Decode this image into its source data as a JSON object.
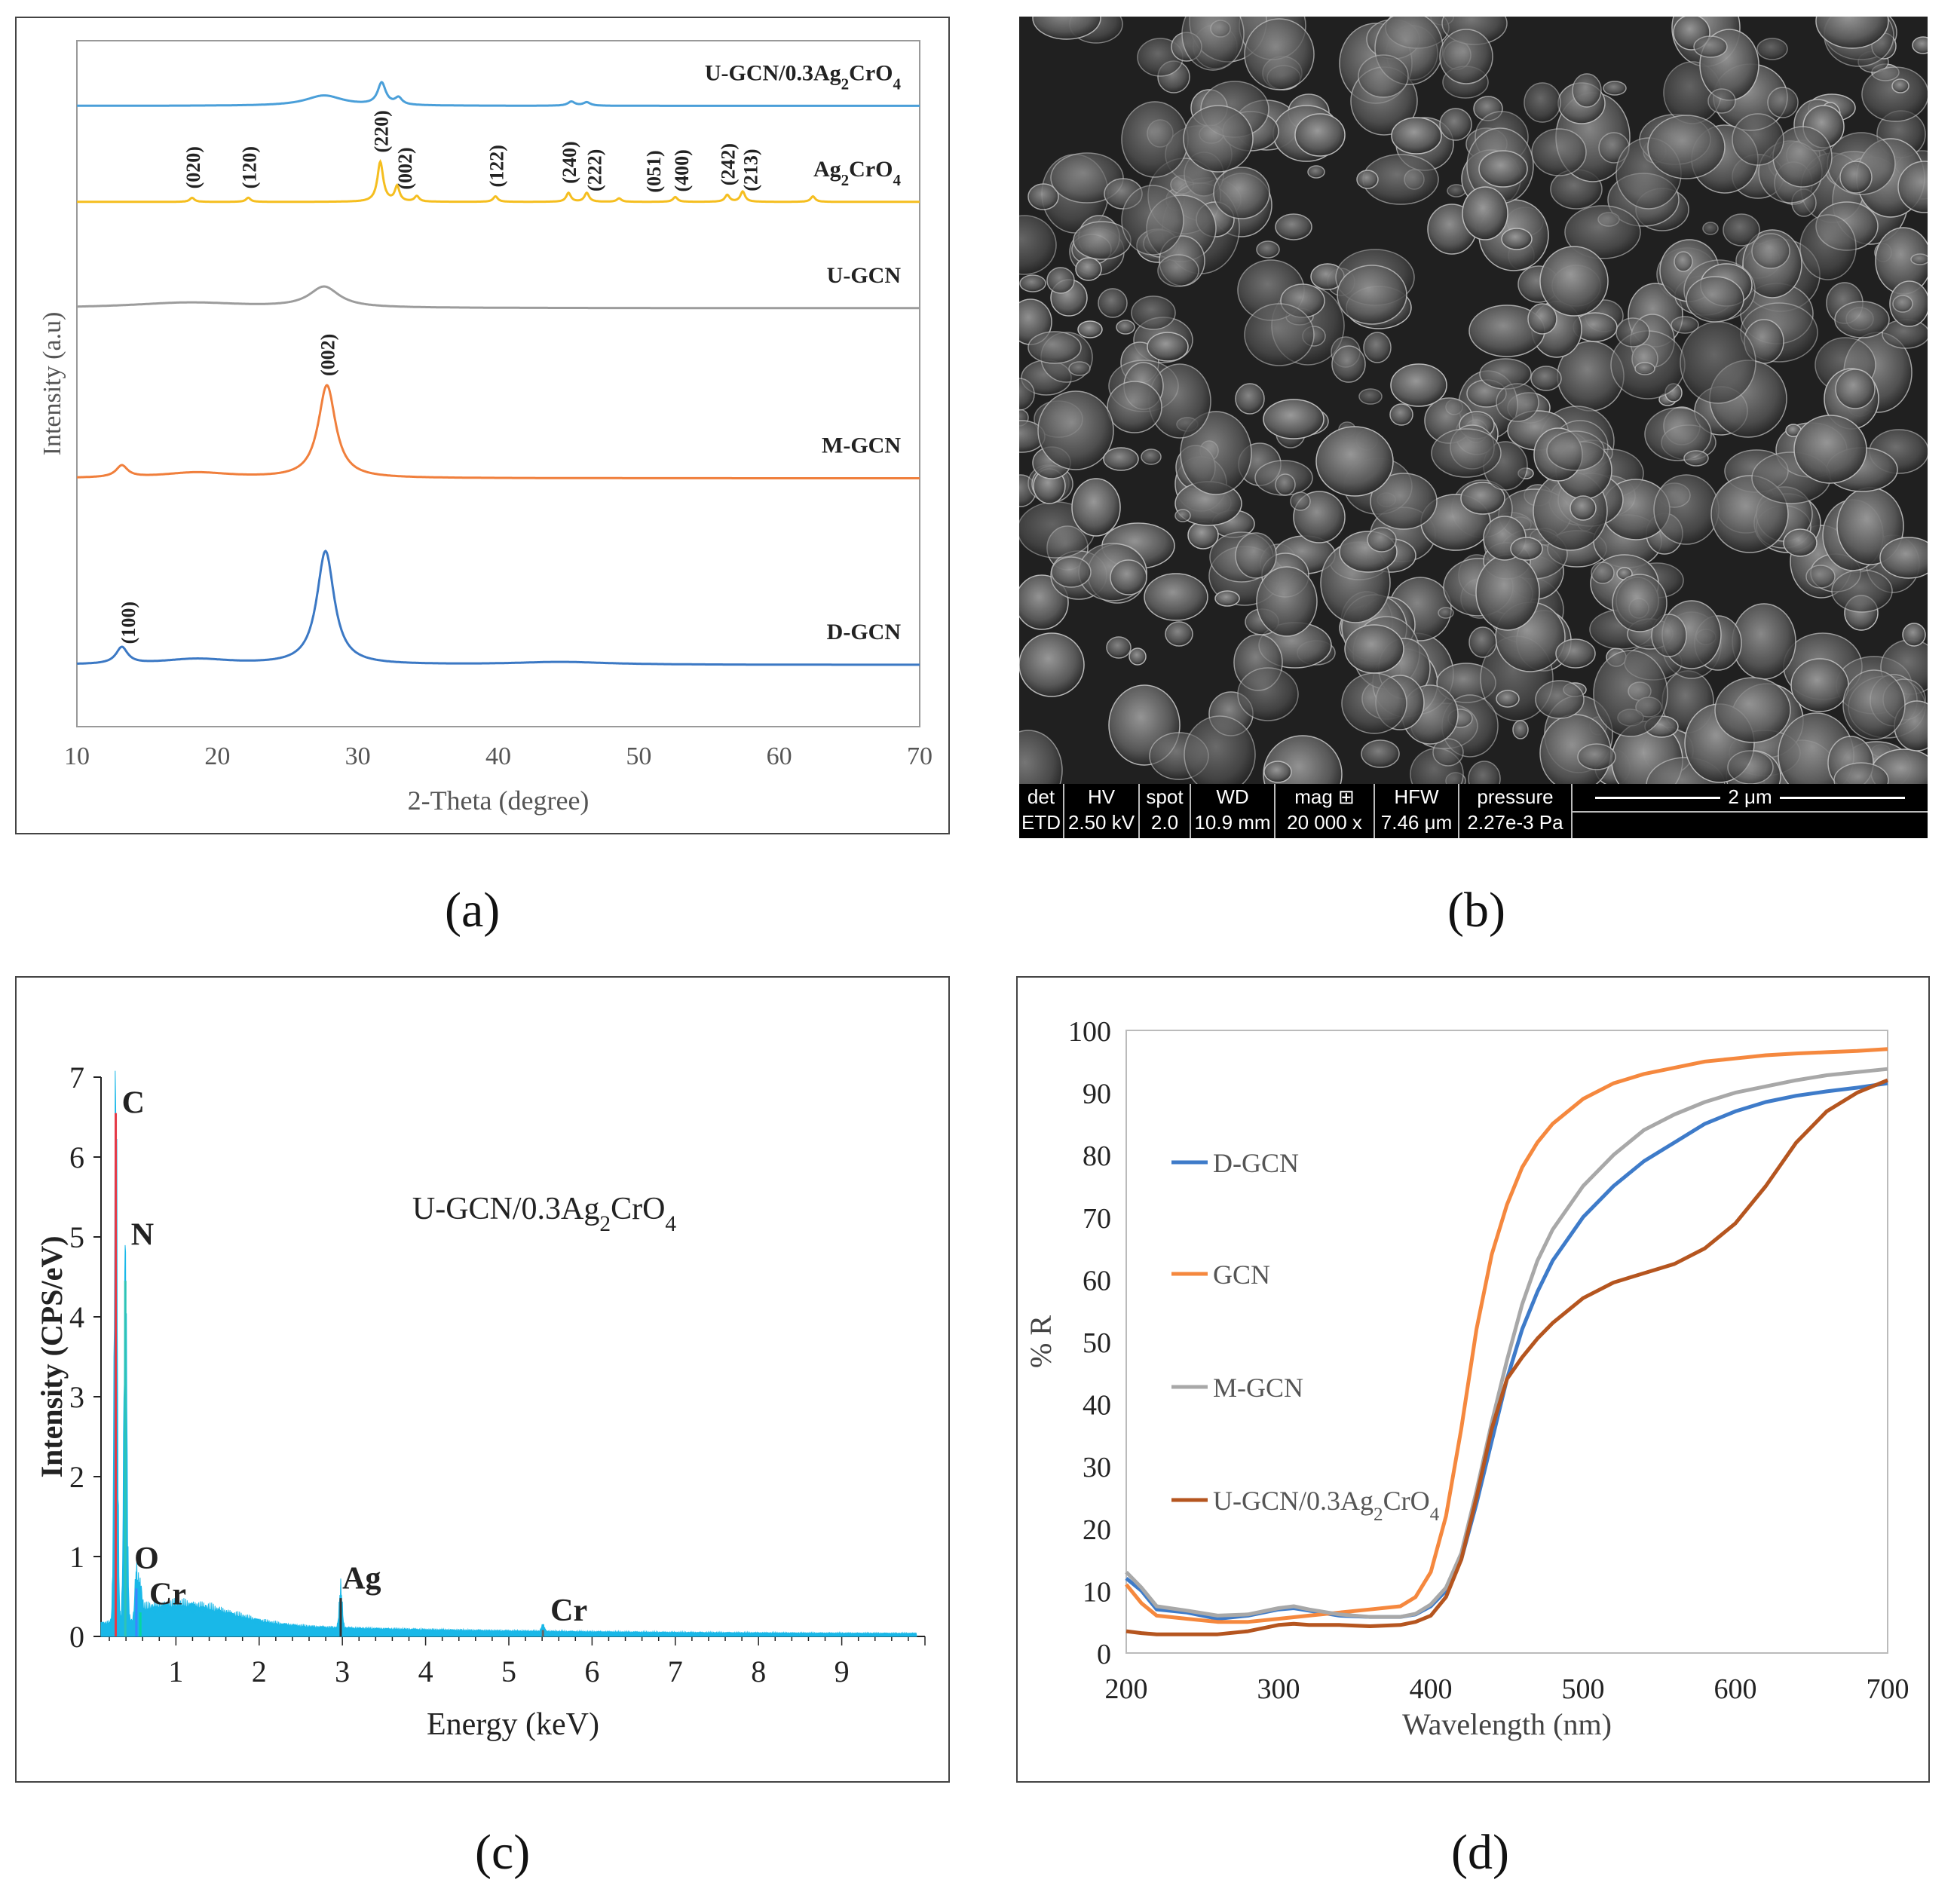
{
  "captions": {
    "a": "(a)",
    "b": "(b)",
    "c": "(c)",
    "d": "(d)"
  },
  "chart_data": [
    {
      "type": "line",
      "panel": "a",
      "xlabel": "2-Theta (degree)",
      "ylabel": "Intensity (a.u)",
      "xlim": [
        10,
        70
      ],
      "xticks": [
        10,
        20,
        30,
        40,
        50,
        60,
        70
      ],
      "series": [
        {
          "name": "U-GCN/0.3Ag2CrO4",
          "color": "#4a9fd9",
          "baseline": 0.905,
          "peaks": [
            {
              "x": 27.6,
              "h": 0.015,
              "w": 1.6
            },
            {
              "x": 31.7,
              "h": 0.032,
              "w": 0.35
            },
            {
              "x": 32.9,
              "h": 0.01,
              "w": 0.3
            },
            {
              "x": 45.2,
              "h": 0.006,
              "w": 0.3
            },
            {
              "x": 46.3,
              "h": 0.005,
              "w": 0.3
            }
          ]
        },
        {
          "name": "Ag2CrO4",
          "color": "#f5be1f",
          "baseline": 0.765,
          "peaks": [
            {
              "x": 18.2,
              "h": 0.006,
              "w": 0.2
            },
            {
              "x": 22.2,
              "h": 0.006,
              "w": 0.2
            },
            {
              "x": 31.6,
              "h": 0.058,
              "w": 0.25
            },
            {
              "x": 32.8,
              "h": 0.022,
              "w": 0.2
            },
            {
              "x": 34.2,
              "h": 0.008,
              "w": 0.2
            },
            {
              "x": 39.8,
              "h": 0.008,
              "w": 0.2
            },
            {
              "x": 45.0,
              "h": 0.013,
              "w": 0.2
            },
            {
              "x": 46.3,
              "h": 0.013,
              "w": 0.2
            },
            {
              "x": 48.6,
              "h": 0.005,
              "w": 0.2
            },
            {
              "x": 52.6,
              "h": 0.007,
              "w": 0.2
            },
            {
              "x": 56.3,
              "h": 0.01,
              "w": 0.2
            },
            {
              "x": 57.4,
              "h": 0.015,
              "w": 0.2
            },
            {
              "x": 62.4,
              "h": 0.008,
              "w": 0.2
            }
          ]
        },
        {
          "name": "U-GCN",
          "color": "#9c9c9c",
          "baseline": 0.61,
          "peaks": [
            {
              "x": 27.6,
              "h": 0.03,
              "w": 1.3
            },
            {
              "x": 18,
              "h": 0.008,
              "w": 5
            }
          ]
        },
        {
          "name": "M-GCN",
          "color": "#f07f3c",
          "baseline": 0.362,
          "peaks": [
            {
              "x": 27.8,
              "h": 0.135,
              "w": 0.75
            },
            {
              "x": 13.2,
              "h": 0.017,
              "w": 0.5
            },
            {
              "x": 18.5,
              "h": 0.008,
              "w": 3
            }
          ]
        },
        {
          "name": "D-GCN",
          "color": "#3b78c4",
          "baseline": 0.09,
          "peaks": [
            {
              "x": 27.7,
              "h": 0.165,
              "w": 0.75
            },
            {
              "x": 13.2,
              "h": 0.024,
              "w": 0.5
            },
            {
              "x": 18.5,
              "h": 0.008,
              "w": 3
            },
            {
              "x": 44.5,
              "h": 0.004,
              "w": 4
            }
          ]
        }
      ],
      "curve_labels": [
        {
          "text": "U-GCN/0.3Ag",
          "sub": "2",
          "text2": "CrO",
          "sub2": "4",
          "series": 0
        },
        {
          "text": "Ag",
          "sub": "2",
          "text2": "CrO",
          "sub2": "4",
          "series": 1
        },
        {
          "text": "U-GCN",
          "series": 2
        },
        {
          "text": "M-GCN",
          "series": 3
        },
        {
          "text": "D-GCN",
          "series": 4
        }
      ],
      "annotations": [
        {
          "text": "(020)",
          "x": 18.2,
          "series": 1
        },
        {
          "text": "(120)",
          "x": 22.2,
          "series": 1
        },
        {
          "text": "(220)",
          "x": 31.6,
          "series": 1
        },
        {
          "text": "(002)",
          "x": 33.3,
          "series": 1
        },
        {
          "text": "(122)",
          "x": 39.8,
          "series": 1
        },
        {
          "text": "(240)",
          "x": 45.0,
          "series": 1
        },
        {
          "text": "(222)",
          "x": 46.8,
          "series": 1
        },
        {
          "text": "(051)",
          "x": 51.0,
          "series": 1
        },
        {
          "text": "(400)",
          "x": 53.0,
          "series": 1
        },
        {
          "text": "(242)",
          "x": 56.3,
          "series": 1
        },
        {
          "text": "(213)",
          "x": 57.9,
          "series": 1
        },
        {
          "text": "(002)",
          "x": 27.8,
          "series": 3
        },
        {
          "text": "(100)",
          "x": 13.6,
          "series": 4
        }
      ]
    },
    {
      "type": "image",
      "panel": "b",
      "scalebar": {
        "label": "2 μm"
      },
      "info_headers": [
        "det",
        "HV",
        "spot",
        "WD",
        "mag ⊞",
        "HFW",
        "pressure"
      ],
      "info_values": [
        "ETD",
        "2.50 kV",
        "2.0",
        "10.9 mm",
        "20 000 x",
        "7.46 μm",
        "2.27e-3 Pa"
      ]
    },
    {
      "type": "area",
      "panel": "c",
      "xlabel": "Energy (keV)",
      "ylabel": "Intensity (CPS/eV)",
      "xlim": [
        0,
        10
      ],
      "ylim": [
        0,
        7
      ],
      "xticks": [
        1,
        2,
        3,
        4,
        5,
        6,
        7,
        8,
        9
      ],
      "yticks": [
        0,
        1,
        2,
        3,
        4,
        5,
        6,
        7
      ],
      "label": "U-GCN/0.3Ag",
      "label_sub": "2",
      "label2": "CrO",
      "label_sub2": "4",
      "fill_color": "#19b8e8",
      "peaks": [
        {
          "x": 0.277,
          "y": 6.55,
          "element": "C"
        },
        {
          "x": 0.392,
          "y": 4.45,
          "element": "N"
        },
        {
          "x": 0.525,
          "y": 0.6,
          "element": "O"
        },
        {
          "x": 0.573,
          "y": 0.3,
          "element": "Cr"
        },
        {
          "x": 2.98,
          "y": 0.48,
          "element": "Ag"
        },
        {
          "x": 5.41,
          "y": 0.08,
          "element": "Cr"
        }
      ],
      "element_labels": [
        {
          "text": "C",
          "x": 0.35,
          "y": 6.55
        },
        {
          "text": "N",
          "x": 0.46,
          "y": 4.9
        },
        {
          "text": "O",
          "x": 0.5,
          "y": 0.85
        },
        {
          "text": "Cr",
          "x": 0.68,
          "y": 0.4
        },
        {
          "text": "Ag",
          "x": 3.0,
          "y": 0.6
        },
        {
          "text": "Cr",
          "x": 5.5,
          "y": 0.2
        }
      ]
    },
    {
      "type": "line",
      "panel": "d",
      "xlabel": "Wavelength (nm)",
      "ylabel": "% R",
      "xlim": [
        200,
        700
      ],
      "ylim": [
        0,
        100
      ],
      "xticks": [
        200,
        300,
        400,
        500,
        600,
        700
      ],
      "yticks": [
        0,
        10,
        20,
        30,
        40,
        50,
        60,
        70,
        80,
        90,
        100
      ],
      "legend_position": "left",
      "series": [
        {
          "name": "D-GCN",
          "color": "#3e7bc9",
          "x": [
            200,
            210,
            220,
            240,
            260,
            280,
            300,
            310,
            320,
            340,
            360,
            380,
            390,
            400,
            410,
            420,
            430,
            440,
            450,
            460,
            470,
            480,
            500,
            520,
            540,
            560,
            580,
            600,
            620,
            640,
            660,
            680,
            700
          ],
          "y": [
            12,
            10,
            7,
            6.5,
            5.5,
            6,
            7,
            7.2,
            6.8,
            6,
            5.8,
            5.8,
            6.2,
            7.5,
            10,
            15,
            24,
            34,
            44,
            52,
            58,
            63,
            70,
            75,
            79,
            82,
            85,
            87,
            88.5,
            89.5,
            90.2,
            90.8,
            91.5
          ]
        },
        {
          "name": "GCN",
          "color": "#f5883e",
          "x": [
            200,
            210,
            220,
            240,
            260,
            280,
            300,
            320,
            340,
            360,
            380,
            390,
            400,
            410,
            420,
            430,
            440,
            450,
            460,
            470,
            480,
            500,
            520,
            540,
            560,
            580,
            600,
            620,
            640,
            660,
            680,
            700
          ],
          "y": [
            11,
            8,
            6,
            5.5,
            5,
            5,
            5.5,
            6,
            6.5,
            7,
            7.5,
            9,
            13,
            22,
            36,
            52,
            64,
            72,
            78,
            82,
            85,
            89,
            91.5,
            93,
            94,
            95,
            95.5,
            96,
            96.3,
            96.5,
            96.7,
            97
          ]
        },
        {
          "name": "M-GCN",
          "color": "#a8a8a8",
          "x": [
            200,
            210,
            220,
            240,
            260,
            280,
            300,
            310,
            320,
            340,
            360,
            380,
            390,
            400,
            410,
            420,
            430,
            440,
            450,
            460,
            470,
            480,
            500,
            520,
            540,
            560,
            580,
            600,
            620,
            640,
            660,
            680,
            700
          ],
          "y": [
            13,
            10.5,
            7.5,
            6.8,
            6,
            6.2,
            7.2,
            7.5,
            7,
            6.2,
            5.8,
            5.8,
            6.3,
            7.8,
            10.5,
            16,
            26,
            37,
            47,
            56,
            63,
            68,
            75,
            80,
            84,
            86.5,
            88.5,
            90,
            91,
            92,
            92.8,
            93.3,
            93.8
          ]
        },
        {
          "name": "U-GCN/0.3Ag2CrO4",
          "color": "#b5551f",
          "x": [
            200,
            210,
            220,
            240,
            260,
            280,
            300,
            310,
            320,
            340,
            360,
            380,
            390,
            400,
            410,
            420,
            430,
            440,
            450,
            460,
            470,
            480,
            500,
            520,
            540,
            560,
            580,
            600,
            620,
            640,
            660,
            680,
            700
          ],
          "y": [
            3.5,
            3.2,
            3,
            3,
            3,
            3.5,
            4.5,
            4.7,
            4.5,
            4.5,
            4.3,
            4.5,
            5,
            6,
            9,
            15,
            25,
            36,
            44,
            47.5,
            50.5,
            53,
            57,
            59.5,
            61,
            62.5,
            65,
            69,
            75,
            82,
            87,
            90,
            92
          ]
        }
      ],
      "legend": [
        {
          "text": "D-GCN",
          "series": 0
        },
        {
          "text": "GCN",
          "series": 1
        },
        {
          "text": "M-GCN",
          "series": 2
        },
        {
          "text": "U-GCN/0.3Ag",
          "sub": "2",
          "text2": "CrO",
          "sub2": "4",
          "series": 3
        }
      ]
    }
  ]
}
